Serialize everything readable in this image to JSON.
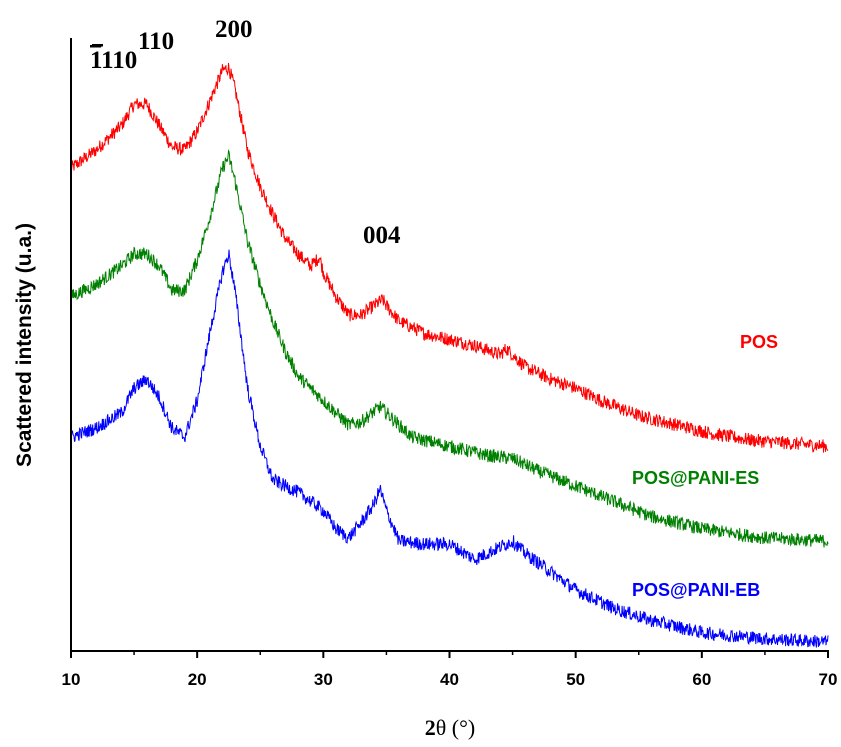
{
  "chart_data": {
    "type": "line",
    "xlabel_prefix": "2",
    "xlabel_symbol": "θ",
    "xlabel_suffix": " (°)",
    "ylabel": "Scattered intensity (u.a.)",
    "xlim": [
      10,
      70
    ],
    "ylim": [
      0,
      100
    ],
    "xticks": [
      "10",
      "20",
      "30",
      "40",
      "50",
      "60",
      "70"
    ],
    "y_axis_ticks": false,
    "grid": false,
    "legend": "none",
    "series": [
      {
        "name": "POS",
        "color": "#ff0000",
        "points": [
          [
            10,
            79.0
          ],
          [
            12,
            82.0
          ],
          [
            14,
            86.0
          ],
          [
            15,
            89.5
          ],
          [
            16,
            89.5
          ],
          [
            17,
            86.0
          ],
          [
            18,
            82.5
          ],
          [
            19,
            82.0
          ],
          [
            20,
            85.0
          ],
          [
            21,
            90.0
          ],
          [
            22,
            95.0
          ],
          [
            22.5,
            95.5
          ],
          [
            23,
            92.0
          ],
          [
            24,
            82.0
          ],
          [
            25,
            76.0
          ],
          [
            26,
            71.5
          ],
          [
            27,
            67.5
          ],
          [
            28,
            65.0
          ],
          [
            29,
            63.0
          ],
          [
            29.7,
            64.5
          ],
          [
            30,
            62.0
          ],
          [
            31,
            58.0
          ],
          [
            32,
            55.0
          ],
          [
            33,
            55.0
          ],
          [
            34,
            56.5
          ],
          [
            34.7,
            57.5
          ],
          [
            35,
            56.5
          ],
          [
            36,
            54.0
          ],
          [
            38,
            52.0
          ],
          [
            40,
            51.0
          ],
          [
            42,
            50.0
          ],
          [
            44,
            48.5
          ],
          [
            44.5,
            49.5
          ],
          [
            46,
            46.5
          ],
          [
            48,
            44.5
          ],
          [
            50,
            43.0
          ],
          [
            52,
            41.0
          ],
          [
            55,
            38.5
          ],
          [
            58,
            37.0
          ],
          [
            61,
            35.5
          ],
          [
            64,
            34.5
          ],
          [
            67,
            34.0
          ],
          [
            70,
            33.5
          ]
        ]
      },
      {
        "name": "POS@PANI-ES",
        "color": "#008000",
        "points": [
          [
            10,
            58.0
          ],
          [
            12,
            60.0
          ],
          [
            14,
            63.0
          ],
          [
            15,
            65.0
          ],
          [
            16,
            65.0
          ],
          [
            17,
            63.0
          ],
          [
            18,
            59.0
          ],
          [
            19,
            59.0
          ],
          [
            20,
            64.0
          ],
          [
            21,
            71.0
          ],
          [
            22,
            79.0
          ],
          [
            22.5,
            81.0
          ],
          [
            23,
            77.0
          ],
          [
            24,
            67.0
          ],
          [
            25,
            60.0
          ],
          [
            26,
            54.0
          ],
          [
            27,
            49.0
          ],
          [
            28,
            45.0
          ],
          [
            30,
            41.0
          ],
          [
            32,
            37.0
          ],
          [
            33,
            37.5
          ],
          [
            34.5,
            40.0
          ],
          [
            35.5,
            38.0
          ],
          [
            37,
            35.0
          ],
          [
            40,
            33.5
          ],
          [
            43,
            32.0
          ],
          [
            45,
            31.5
          ],
          [
            47,
            29.5
          ],
          [
            50,
            27.0
          ],
          [
            53,
            24.5
          ],
          [
            56,
            22.0
          ],
          [
            60,
            20.0
          ],
          [
            65,
            18.5
          ],
          [
            70,
            18.0
          ]
        ]
      },
      {
        "name": "POS@PANI-EB",
        "color": "#0000ff",
        "points": [
          [
            10,
            35.0
          ],
          [
            12,
            36.5
          ],
          [
            14,
            39.0
          ],
          [
            15,
            43.0
          ],
          [
            16,
            44.5
          ],
          [
            17,
            41.5
          ],
          [
            18,
            36.5
          ],
          [
            19,
            35.0
          ],
          [
            20,
            41.0
          ],
          [
            21,
            52.0
          ],
          [
            22,
            62.0
          ],
          [
            22.5,
            65.0
          ],
          [
            23,
            59.0
          ],
          [
            24,
            43.0
          ],
          [
            25,
            33.5
          ],
          [
            26,
            28.0
          ],
          [
            28,
            26.0
          ],
          [
            30,
            23.0
          ],
          [
            31,
            20.0
          ],
          [
            32,
            18.5
          ],
          [
            33,
            21.0
          ],
          [
            34,
            24.0
          ],
          [
            34.5,
            26.5
          ],
          [
            35,
            23.0
          ],
          [
            36,
            18.0
          ],
          [
            38,
            17.5
          ],
          [
            40,
            17.5
          ],
          [
            42,
            15.0
          ],
          [
            44,
            17.0
          ],
          [
            45,
            18.0
          ],
          [
            46,
            16.0
          ],
          [
            48,
            13.0
          ],
          [
            50,
            10.0
          ],
          [
            53,
            7.0
          ],
          [
            56,
            5.0
          ],
          [
            60,
            3.0
          ],
          [
            65,
            2.0
          ],
          [
            70,
            1.5
          ]
        ]
      }
    ],
    "series_labels": [
      {
        "text": "POS",
        "series": 0
      },
      {
        "text": "POS@PANI-ES",
        "series": 1
      },
      {
        "text": "POS@PANI-EB",
        "series": 2
      }
    ],
    "annotations": [
      {
        "text": "110",
        "overbar": "1",
        "name": "peak-label-1bar10"
      },
      {
        "text": "110",
        "name": "peak-label-110"
      },
      {
        "text": "200",
        "name": "peak-label-200"
      },
      {
        "text": "004",
        "name": "peak-label-004"
      }
    ]
  }
}
